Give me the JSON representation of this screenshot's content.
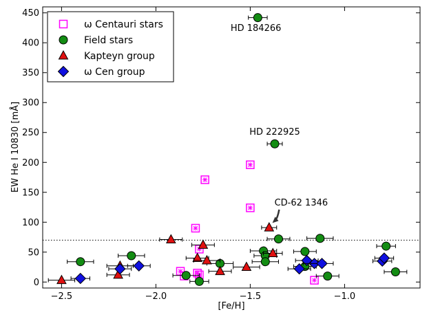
{
  "chart_data": {
    "type": "scatter",
    "xlabel": "[Fe/H]",
    "ylabel": "EW He I 10830 [mÅ]",
    "xlim": [
      -2.6,
      -0.6
    ],
    "ylim": [
      -10,
      460
    ],
    "xticks": [
      -2.5,
      -2.0,
      -1.5,
      -1.0
    ],
    "xtick_labels": [
      "−2.5",
      "−2.0",
      "−1.5",
      "−1.0"
    ],
    "yticks": [
      0,
      50,
      100,
      150,
      200,
      250,
      300,
      350,
      400,
      450
    ],
    "ytick_labels": [
      "0",
      "50",
      "100",
      "150",
      "200",
      "250",
      "300",
      "350",
      "400",
      "450"
    ],
    "threshold_line": 70,
    "legend_position": "top-left",
    "series": [
      {
        "name": "ω Centauri stars",
        "marker": "square-open",
        "color": "#ff00ff",
        "points": [
          {
            "x": -1.87,
            "y": 18
          },
          {
            "x": -1.85,
            "y": 10
          },
          {
            "x": -1.78,
            "y": 15
          },
          {
            "x": -1.77,
            "y": 12
          },
          {
            "x": -1.79,
            "y": 90
          },
          {
            "x": -1.77,
            "y": 55
          },
          {
            "x": -1.74,
            "y": 171
          },
          {
            "x": -1.5,
            "y": 196
          },
          {
            "x": -1.5,
            "y": 124
          },
          {
            "x": -1.16,
            "y": 3
          }
        ]
      },
      {
        "name": "Field stars",
        "marker": "circle",
        "color": "#138c13",
        "points": [
          {
            "x": -1.46,
            "y": 442,
            "xerr": 0.05
          },
          {
            "x": -1.37,
            "y": 231,
            "xerr": 0.04
          },
          {
            "x": -2.4,
            "y": 34,
            "xerr": 0.07
          },
          {
            "x": -2.13,
            "y": 44,
            "xerr": 0.07
          },
          {
            "x": -1.84,
            "y": 11,
            "xerr": 0.07
          },
          {
            "x": -1.77,
            "y": 1,
            "xerr": 0.05
          },
          {
            "x": -1.66,
            "y": 31,
            "xerr": 0.07
          },
          {
            "x": -1.43,
            "y": 52,
            "xerr": 0.07
          },
          {
            "x": -1.42,
            "y": 44,
            "xerr": 0.06
          },
          {
            "x": -1.42,
            "y": 34,
            "xerr": 0.07
          },
          {
            "x": -1.35,
            "y": 72,
            "xerr": 0.06
          },
          {
            "x": -1.21,
            "y": 51,
            "xerr": 0.06
          },
          {
            "x": -1.21,
            "y": 26,
            "xerr": 0.06
          },
          {
            "x": -1.13,
            "y": 73,
            "xerr": 0.07
          },
          {
            "x": -1.09,
            "y": 10,
            "xerr": 0.06
          },
          {
            "x": -0.78,
            "y": 60,
            "xerr": 0.05
          },
          {
            "x": -0.73,
            "y": 17,
            "xerr": 0.06
          }
        ]
      },
      {
        "name": "Kapteyn group",
        "marker": "triangle",
        "color": "#e01010",
        "points": [
          {
            "x": -2.5,
            "y": 3,
            "xerr": 0.07
          },
          {
            "x": -2.2,
            "y": 12,
            "xerr": 0.06
          },
          {
            "x": -2.19,
            "y": 27,
            "xerr": 0.07
          },
          {
            "x": -1.92,
            "y": 71,
            "xerr": 0.06
          },
          {
            "x": -1.78,
            "y": 40,
            "xerr": 0.06
          },
          {
            "x": -1.75,
            "y": 62,
            "xerr": 0.06
          },
          {
            "x": -1.73,
            "y": 36,
            "xerr": 0.07
          },
          {
            "x": -1.66,
            "y": 18,
            "xerr": 0.06
          },
          {
            "x": -1.52,
            "y": 25,
            "xerr": 0.07
          },
          {
            "x": -1.4,
            "y": 91,
            "xerr": 0.04
          },
          {
            "x": -1.38,
            "y": 48,
            "xerr": 0.05
          }
        ]
      },
      {
        "name": "ω Cen group",
        "marker": "diamond",
        "color": "#1010e0",
        "points": [
          {
            "x": -2.4,
            "y": 6,
            "xerr": 0.05
          },
          {
            "x": -2.19,
            "y": 22,
            "xerr": 0.06
          },
          {
            "x": -2.09,
            "y": 27,
            "xerr": 0.06
          },
          {
            "x": -1.24,
            "y": 22,
            "xerr": 0.06
          },
          {
            "x": -1.2,
            "y": 36,
            "xerr": 0.06
          },
          {
            "x": -1.16,
            "y": 31,
            "xerr": 0.06
          },
          {
            "x": -1.12,
            "y": 31,
            "xerr": 0.06
          },
          {
            "x": -0.8,
            "y": 35,
            "xerr": 0.05
          },
          {
            "x": -0.79,
            "y": 40,
            "xerr": 0.05
          }
        ]
      }
    ],
    "annotations": [
      {
        "text": "HD 184266",
        "x": -1.47,
        "y": 420
      },
      {
        "text": "HD 222925",
        "x": -1.37,
        "y": 246
      },
      {
        "text": "CD-62 1346",
        "x": -1.23,
        "y": 128,
        "arrow_to": {
          "x": -1.39,
          "y": 93
        }
      }
    ]
  }
}
